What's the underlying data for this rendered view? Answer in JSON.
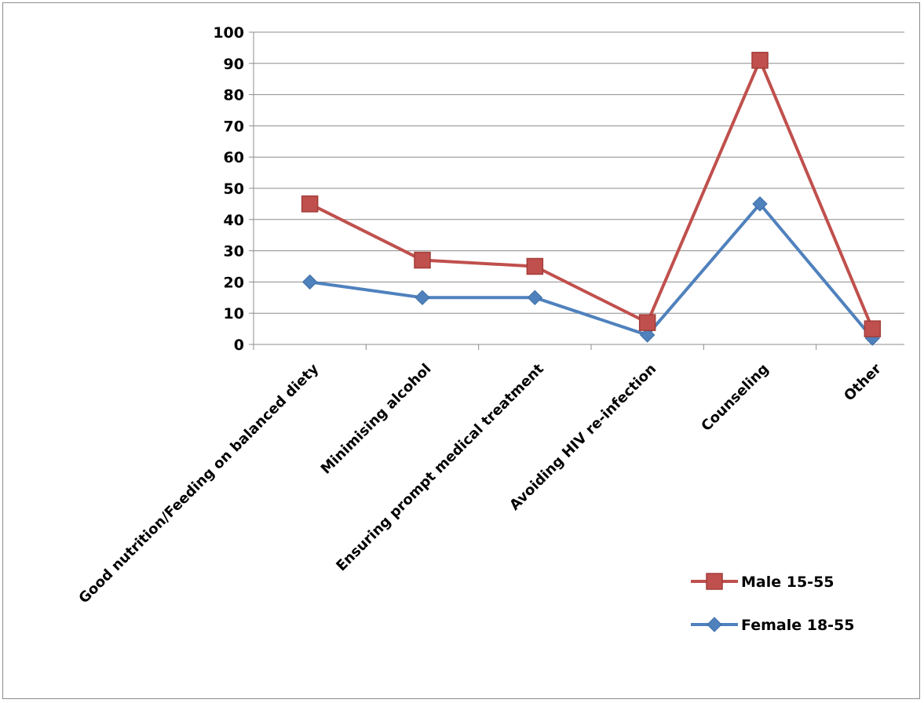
{
  "chart_data": {
    "type": "line",
    "categories": [
      "Good nutrition/Feeding on balanced diety",
      "Minimising alcohol",
      "Ensuring prompt medical treatment",
      "Avoiding HIV re-infection",
      "Counseling",
      "Other"
    ],
    "series": [
      {
        "name": "Male 15-55",
        "values": [
          45,
          27,
          25,
          7,
          91,
          5
        ],
        "color": "#c0504d",
        "marker": "square"
      },
      {
        "name": "Female 18-55",
        "values": [
          20,
          15,
          15,
          3,
          45,
          2
        ],
        "color": "#4f81bd",
        "marker": "diamond"
      }
    ],
    "ylim": [
      0,
      100
    ],
    "yticks": [
      0,
      10,
      20,
      30,
      40,
      50,
      60,
      70,
      80,
      90,
      100
    ],
    "grid": true,
    "legend_position": "bottom-right",
    "title": "",
    "xlabel": "",
    "ylabel": ""
  }
}
